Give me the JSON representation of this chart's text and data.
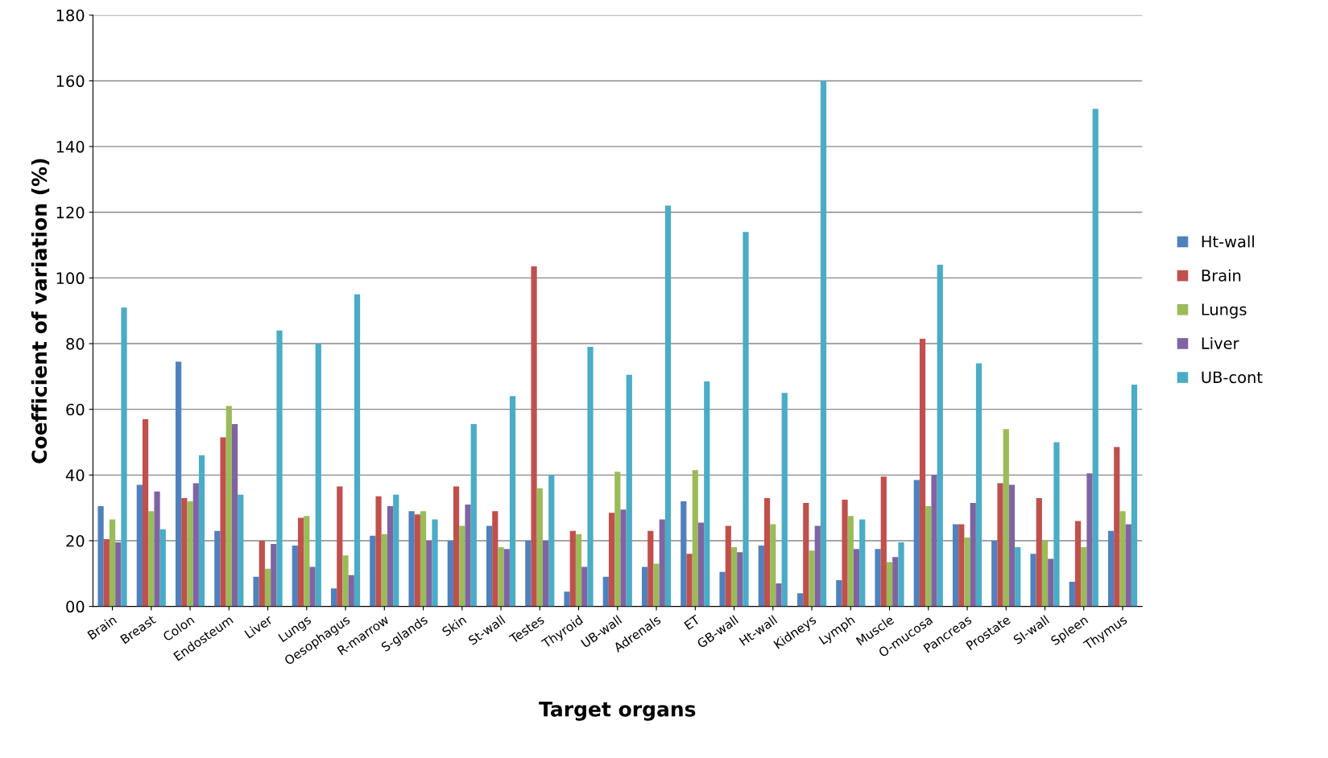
{
  "chart_data": {
    "type": "bar",
    "xlabel": "Target organs",
    "ylabel": "Coefficient of variation (%)",
    "categories": [
      "Brain",
      "Breast",
      "Colon",
      "Endosteum",
      "Liver",
      "Lungs",
      "Oesophagus",
      "R-marrow",
      "S-glands",
      "Skin",
      "St-wall",
      "Testes",
      "Thyroid",
      "UB-wall",
      "Adrenals",
      "ET",
      "GB-wall",
      "Ht-wall",
      "Kidneys",
      "Lymph",
      "Muscle",
      "O-mucosa",
      "Pancreas",
      "Prostate",
      "SI-wall",
      "Spleen",
      "Thymus"
    ],
    "series": [
      {
        "name": "Ht-wall",
        "color": "#4f81bd",
        "values": [
          30.5,
          37,
          74.5,
          23,
          9,
          18.5,
          5.5,
          21.5,
          29,
          20,
          24.5,
          20,
          4.5,
          9,
          12,
          32,
          10.5,
          18.5,
          4,
          8,
          17.5,
          38.5,
          25,
          20,
          16,
          7.5,
          23
        ]
      },
      {
        "name": "Brain",
        "color": "#c0504d",
        "values": [
          20.5,
          57,
          33,
          51.5,
          20,
          27,
          36.5,
          33.5,
          28,
          36.5,
          29,
          103.5,
          23,
          28.5,
          23,
          16,
          24.5,
          33,
          31.5,
          32.5,
          39.5,
          81.5,
          25,
          37.5,
          33,
          26,
          48.5
        ]
      },
      {
        "name": "Lungs",
        "color": "#9bbb59",
        "values": [
          26.5,
          29,
          32,
          61,
          11.5,
          27.5,
          15.5,
          22,
          29,
          24.5,
          18,
          36,
          22,
          41,
          13,
          41.5,
          18,
          25,
          17,
          27.5,
          13.5,
          30.5,
          21,
          54,
          20,
          18,
          29
        ]
      },
      {
        "name": "Liver",
        "color": "#8064a2",
        "values": [
          19.5,
          35,
          37.5,
          55.5,
          19,
          12,
          9.5,
          30.5,
          20,
          31,
          17.5,
          20,
          12,
          29.5,
          26.5,
          25.5,
          16.5,
          7,
          24.5,
          17.5,
          15,
          40,
          31.5,
          37,
          14.5,
          40.5,
          25
        ]
      },
      {
        "name": "UB-cont",
        "color": "#4bacc6",
        "values": [
          91,
          23.5,
          46,
          34,
          84,
          80,
          95,
          34,
          26.5,
          55.5,
          64,
          40,
          79,
          70.5,
          122,
          68.5,
          114,
          65,
          160,
          26.5,
          19.5,
          104,
          74,
          18,
          50,
          151.5,
          67.5
        ]
      }
    ],
    "ylim": [
      0,
      180
    ],
    "yticks": [
      {
        "value": 0,
        "label": "00"
      },
      20,
      40,
      60,
      80,
      100,
      120,
      140,
      160,
      180
    ],
    "grid": "y",
    "legend": "right"
  }
}
